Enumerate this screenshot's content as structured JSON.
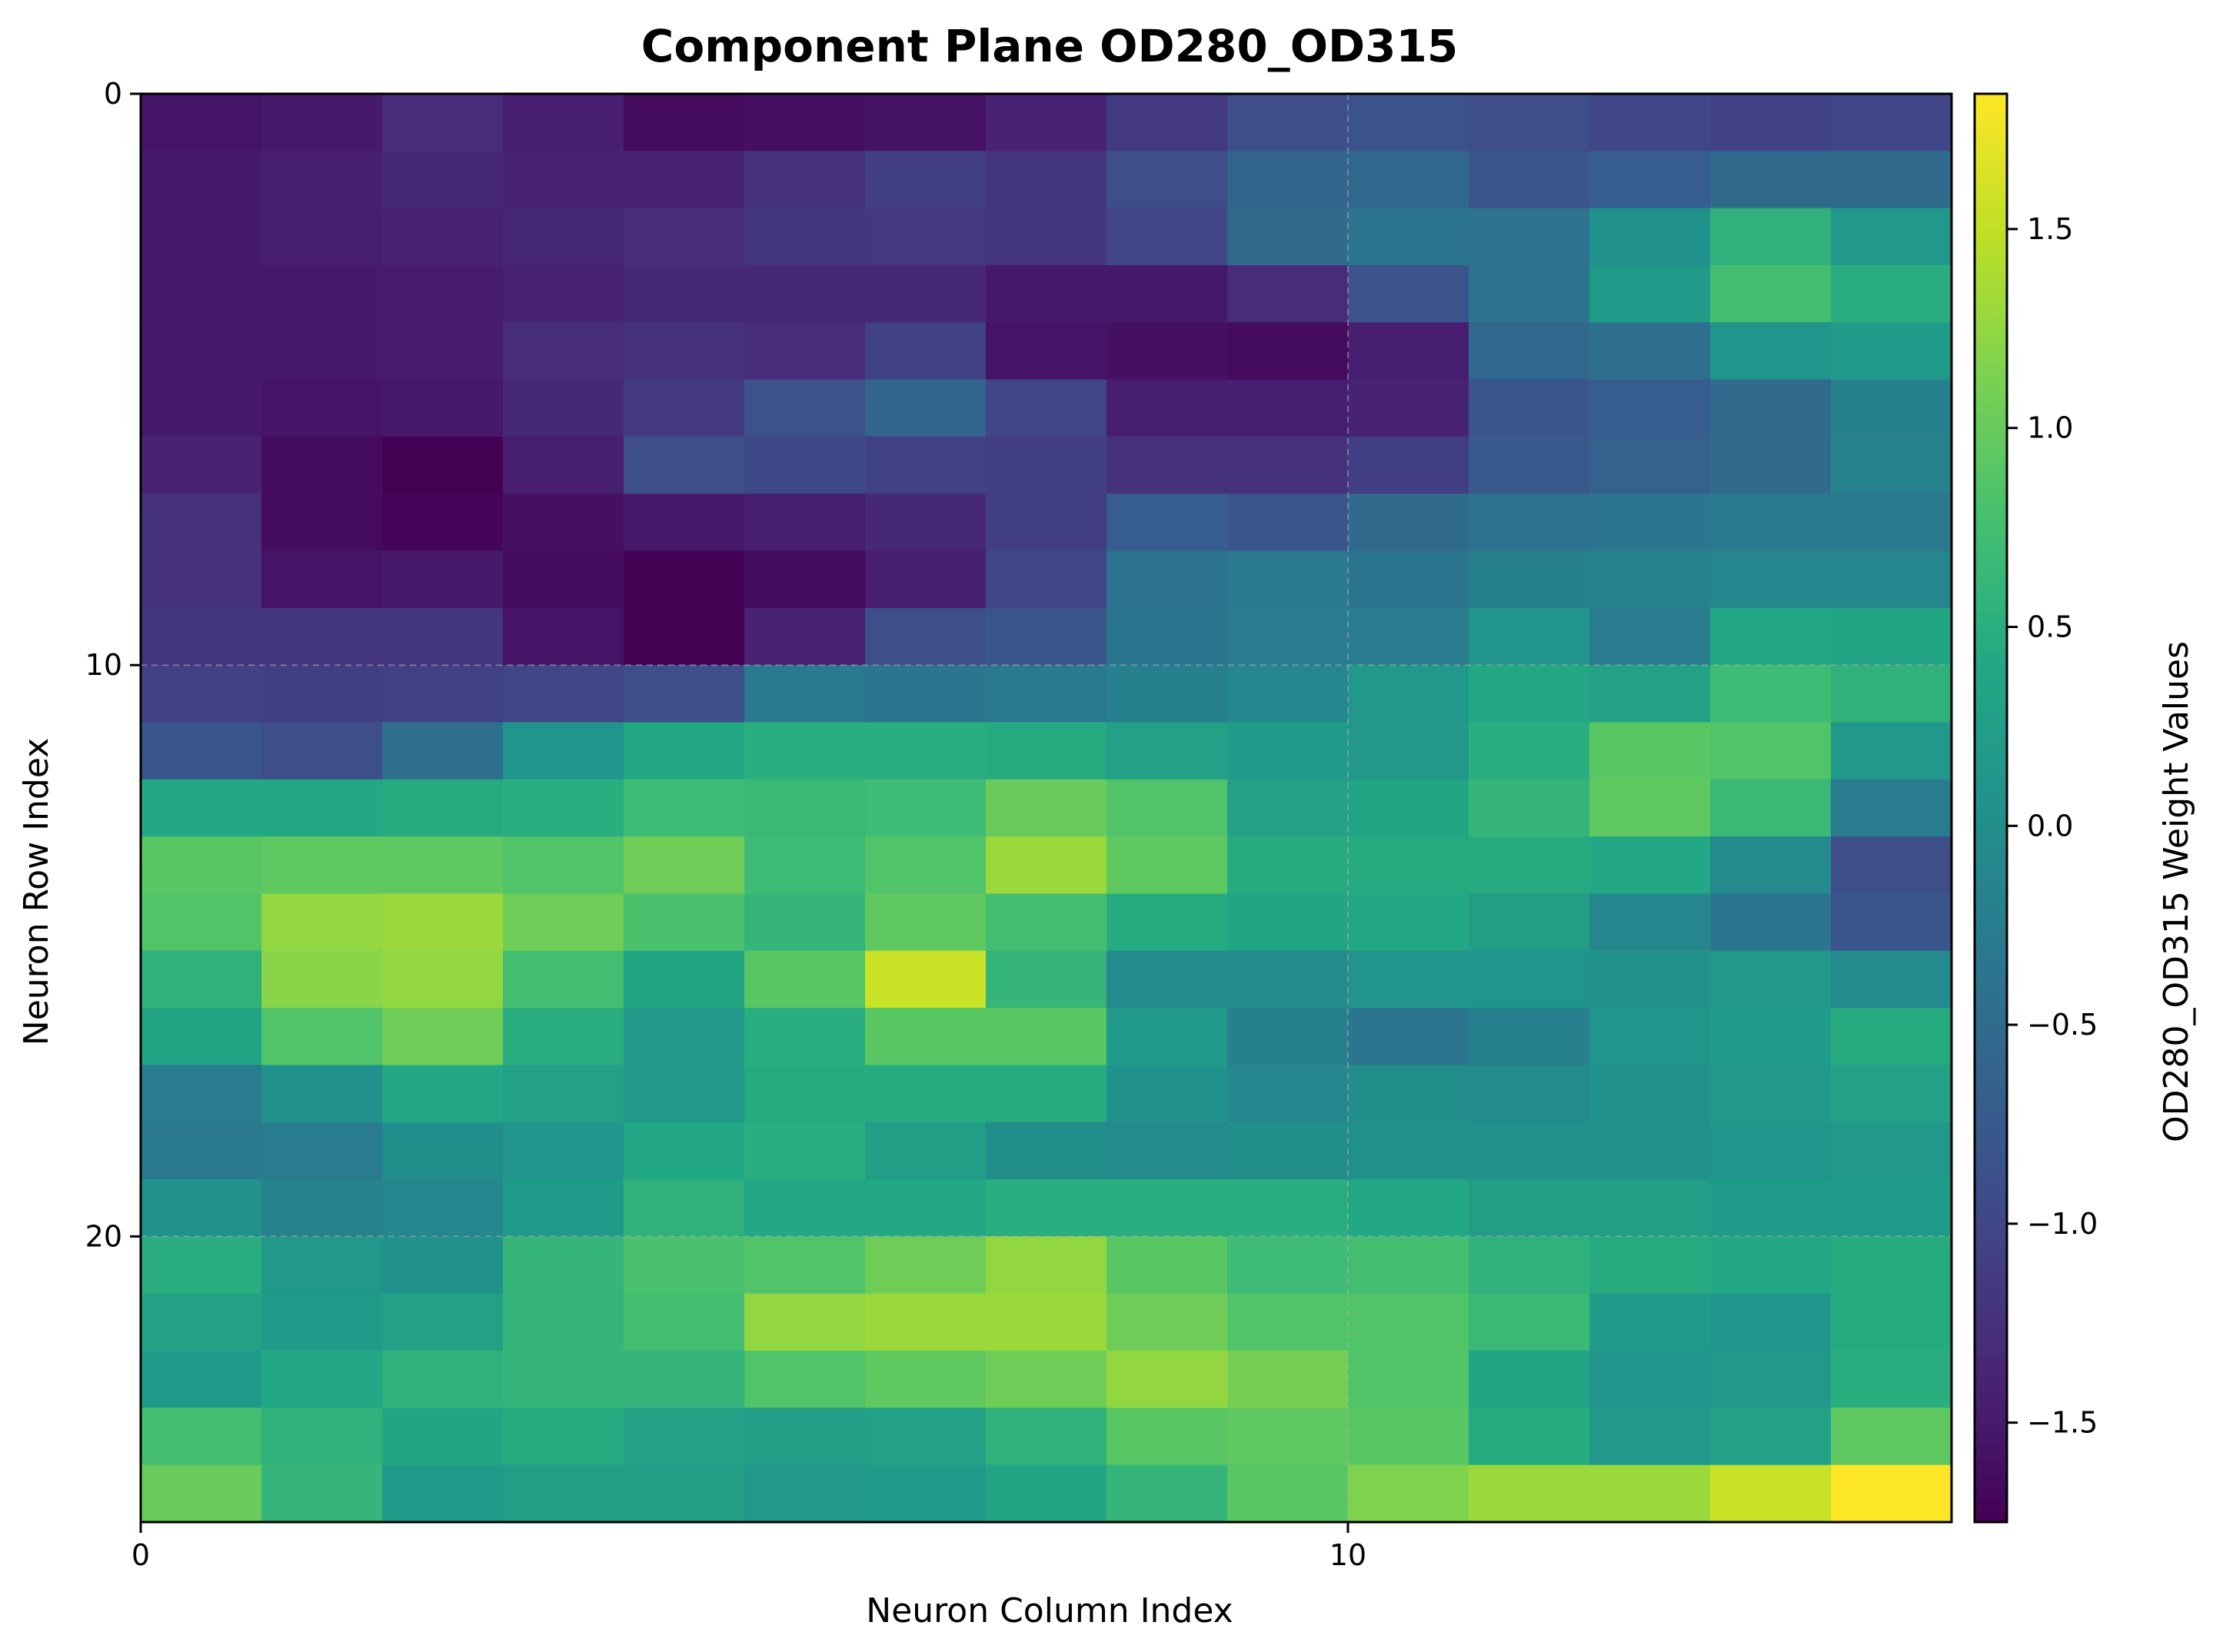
{
  "chart_data": {
    "type": "heatmap",
    "title": "Component Plane OD280_OD315",
    "xlabel": "Neuron Column Index",
    "ylabel": "Neuron Row Index",
    "colorbar_label": "OD280_OD315 Weight Values",
    "colormap": "viridis",
    "n_cols": 15,
    "n_rows": 25,
    "x_ticks": [
      0,
      10
    ],
    "y_ticks": [
      0,
      10,
      20
    ],
    "x_tick_labels": [
      "0",
      "10"
    ],
    "y_tick_labels": [
      "0",
      "10",
      "20"
    ],
    "vmin": -1.75,
    "vmax": 1.84,
    "colorbar_ticks": [
      -1.5,
      -1.0,
      -0.5,
      0.0,
      0.5,
      1.0,
      1.5
    ],
    "colorbar_tick_labels": [
      "−1.5",
      "−1.0",
      "−0.5",
      "0.0",
      "0.5",
      "1.0",
      "1.5"
    ],
    "grid": "dashed, at major ticks",
    "values": [
      [
        -1.55,
        -1.5,
        -1.3,
        -1.45,
        -1.65,
        -1.6,
        -1.58,
        -1.4,
        -1.15,
        -0.9,
        -0.85,
        -0.9,
        -1.0,
        -1.05,
        -1.0
      ],
      [
        -1.5,
        -1.45,
        -1.35,
        -1.4,
        -1.4,
        -1.25,
        -1.1,
        -1.2,
        -0.9,
        -0.6,
        -0.55,
        -0.8,
        -0.7,
        -0.5,
        -0.5
      ],
      [
        -1.5,
        -1.45,
        -1.4,
        -1.35,
        -1.3,
        -1.2,
        -1.15,
        -1.2,
        -1.0,
        -0.5,
        -0.35,
        -0.4,
        0.05,
        0.55,
        0.15
      ],
      [
        -1.5,
        -1.5,
        -1.48,
        -1.4,
        -1.35,
        -1.35,
        -1.35,
        -1.5,
        -1.5,
        -1.3,
        -0.85,
        -0.4,
        0.2,
        0.75,
        0.5
      ],
      [
        -1.5,
        -1.5,
        -1.48,
        -1.3,
        -1.25,
        -1.3,
        -1.05,
        -1.55,
        -1.6,
        -1.65,
        -1.45,
        -0.55,
        -0.45,
        0.1,
        0.2
      ],
      [
        -1.5,
        -1.55,
        -1.52,
        -1.35,
        -1.15,
        -0.85,
        -0.6,
        -1.0,
        -1.45,
        -1.45,
        -1.4,
        -0.8,
        -0.7,
        -0.5,
        -0.2
      ],
      [
        -1.4,
        -1.65,
        -1.75,
        -1.45,
        -0.9,
        -0.95,
        -1.05,
        -1.1,
        -1.25,
        -1.25,
        -1.1,
        -0.75,
        -0.65,
        -0.5,
        -0.15
      ],
      [
        -1.25,
        -1.65,
        -1.7,
        -1.6,
        -1.5,
        -1.45,
        -1.35,
        -1.1,
        -0.7,
        -0.8,
        -0.5,
        -0.4,
        -0.35,
        -0.3,
        -0.3
      ],
      [
        -1.25,
        -1.55,
        -1.5,
        -1.65,
        -1.75,
        -1.65,
        -1.45,
        -1.0,
        -0.4,
        -0.3,
        -0.35,
        -0.2,
        -0.15,
        -0.1,
        -0.1
      ],
      [
        -1.2,
        -1.2,
        -1.2,
        -1.55,
        -1.75,
        -1.4,
        -0.9,
        -0.8,
        -0.35,
        -0.25,
        -0.25,
        0.1,
        -0.25,
        0.4,
        0.35
      ],
      [
        -1.05,
        -1.1,
        -1.05,
        -1.0,
        -0.9,
        -0.3,
        -0.35,
        -0.3,
        -0.2,
        -0.1,
        0.15,
        0.4,
        0.3,
        0.7,
        0.55
      ],
      [
        -0.8,
        -0.9,
        -0.45,
        0.1,
        0.4,
        0.5,
        0.5,
        0.45,
        0.3,
        0.2,
        0.15,
        0.5,
        0.9,
        0.85,
        0.15
      ],
      [
        0.4,
        0.4,
        0.45,
        0.5,
        0.7,
        0.65,
        0.7,
        1.0,
        0.85,
        0.3,
        0.35,
        0.6,
        0.95,
        0.65,
        -0.25
      ],
      [
        0.9,
        0.95,
        0.95,
        0.85,
        1.05,
        0.7,
        0.85,
        1.3,
        0.95,
        0.45,
        0.45,
        0.45,
        0.4,
        -0.05,
        -0.9
      ],
      [
        0.85,
        1.25,
        1.3,
        1.05,
        0.8,
        0.6,
        0.95,
        0.75,
        0.45,
        0.35,
        0.4,
        0.25,
        -0.1,
        -0.35,
        -0.8
      ],
      [
        0.55,
        1.2,
        1.25,
        0.75,
        0.35,
        0.9,
        1.55,
        0.6,
        -0.05,
        -0.05,
        0.1,
        0.1,
        0.05,
        0.15,
        -0.05
      ],
      [
        0.35,
        0.85,
        1.05,
        0.5,
        0.15,
        0.5,
        0.9,
        0.9,
        0.2,
        -0.2,
        -0.35,
        -0.2,
        0.1,
        0.2,
        0.45
      ],
      [
        -0.25,
        0.05,
        0.4,
        0.3,
        0.15,
        0.45,
        0.45,
        0.45,
        0.05,
        -0.1,
        0.0,
        -0.05,
        0.05,
        0.15,
        0.3
      ],
      [
        -0.3,
        -0.25,
        0.0,
        0.1,
        0.4,
        0.5,
        0.25,
        0.0,
        -0.05,
        0.0,
        0.05,
        0.05,
        0.05,
        0.1,
        0.15
      ],
      [
        0.05,
        -0.15,
        -0.1,
        0.2,
        0.55,
        0.4,
        0.4,
        0.5,
        0.5,
        0.5,
        0.4,
        0.25,
        0.25,
        0.2,
        0.2
      ],
      [
        0.5,
        0.15,
        0.05,
        0.6,
        0.8,
        0.85,
        1.05,
        1.25,
        0.9,
        0.7,
        0.75,
        0.55,
        0.45,
        0.4,
        0.45
      ],
      [
        0.3,
        0.2,
        0.3,
        0.6,
        0.75,
        1.25,
        1.3,
        1.3,
        1.05,
        0.85,
        0.85,
        0.65,
        0.2,
        0.1,
        0.45
      ],
      [
        0.2,
        0.4,
        0.55,
        0.6,
        0.6,
        0.85,
        0.95,
        1.05,
        1.25,
        1.1,
        0.85,
        0.35,
        0.1,
        0.15,
        0.5
      ],
      [
        0.75,
        0.55,
        0.35,
        0.45,
        0.3,
        0.25,
        0.3,
        0.55,
        0.9,
        0.95,
        0.9,
        0.45,
        0.15,
        0.3,
        0.95
      ],
      [
        1.0,
        0.6,
        0.2,
        0.25,
        0.25,
        0.15,
        0.2,
        0.35,
        0.6,
        0.9,
        1.15,
        1.3,
        1.3,
        1.55,
        1.84
      ]
    ]
  }
}
